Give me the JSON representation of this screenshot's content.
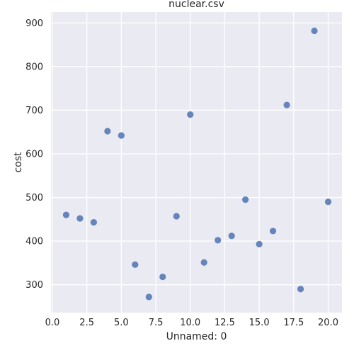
{
  "chart_data": {
    "type": "scatter",
    "title": "nuclear.csv",
    "xlabel": "Unnamed: 0",
    "ylabel": "cost",
    "xlim": [
      -0.1,
      21.0
    ],
    "ylim": [
      236,
      925
    ],
    "xticks": [
      0.0,
      2.5,
      5.0,
      7.5,
      10.0,
      12.5,
      15.0,
      17.5,
      20.0
    ],
    "xtick_labels": [
      "0.0",
      "2.5",
      "5.0",
      "7.5",
      "10.0",
      "12.5",
      "15.0",
      "17.5",
      "20.0"
    ],
    "yticks": [
      300,
      400,
      500,
      600,
      700,
      800,
      900
    ],
    "ytick_labels": [
      "300",
      "400",
      "500",
      "600",
      "700",
      "800",
      "900"
    ],
    "grid": true,
    "legend": "none",
    "colors": {
      "background": "#eaeaf2",
      "grid": "#ffffff",
      "marker": "#4c72b0"
    },
    "x": [
      1,
      2,
      3,
      4,
      5,
      6,
      7,
      8,
      9,
      10,
      11,
      12,
      13,
      14,
      15,
      16,
      17,
      18,
      19,
      20
    ],
    "y": [
      460,
      452,
      443,
      652,
      642,
      346,
      272,
      318,
      457,
      690,
      351,
      402,
      412,
      495,
      393,
      423,
      712,
      290,
      882,
      490
    ]
  }
}
